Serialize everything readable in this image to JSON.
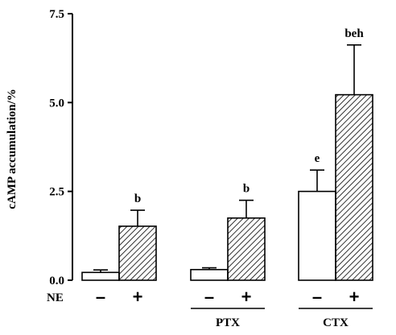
{
  "chart_data": {
    "type": "bar",
    "title": "",
    "ylabel": "cAMP accumulation/%",
    "xlabel": "",
    "ylim": [
      0,
      7.5
    ],
    "yticks": [
      {
        "value": 0,
        "label": "0.0"
      },
      {
        "value": 2.5,
        "label": "2.5"
      },
      {
        "value": 5,
        "label": "5.0"
      },
      {
        "value": 7.5,
        "label": "7.5"
      }
    ],
    "row_label": "NE",
    "bars": [
      {
        "group": "",
        "ne": "–",
        "value": 0.22,
        "error": 0.07,
        "fill": "open",
        "sig": ""
      },
      {
        "group": "",
        "ne": "+",
        "value": 1.52,
        "error": 0.45,
        "fill": "hatched",
        "sig": "b"
      },
      {
        "group": "PTX",
        "ne": "–",
        "value": 0.3,
        "error": 0.05,
        "fill": "open",
        "sig": ""
      },
      {
        "group": "PTX",
        "ne": "+",
        "value": 1.75,
        "error": 0.5,
        "fill": "hatched",
        "sig": "b"
      },
      {
        "group": "CTX",
        "ne": "–",
        "value": 2.5,
        "error": 0.6,
        "fill": "open",
        "sig": "e"
      },
      {
        "group": "CTX",
        "ne": "+",
        "value": 5.22,
        "error": 1.4,
        "fill": "hatched",
        "sig": "beh"
      }
    ],
    "groups": [
      {
        "name": "PTX",
        "bars": [
          2,
          3
        ]
      },
      {
        "name": "CTX",
        "bars": [
          4,
          5
        ]
      }
    ],
    "legend": "none",
    "grid": false
  }
}
